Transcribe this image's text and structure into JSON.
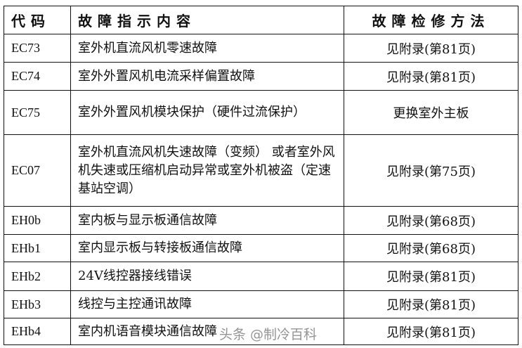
{
  "table": {
    "headers": [
      "代码",
      "故障指示内容",
      "故障检修方法"
    ],
    "rows": [
      {
        "code": "EC73",
        "desc": "室外机直流风机零速故障",
        "method": "见附录(第81页)"
      },
      {
        "code": "EC74",
        "desc": "室外外置风机电流采样偏置故障",
        "method": "见附录(第81页)"
      },
      {
        "code": "EC75",
        "desc": "室外外置风机模块保护（硬件过流保护）",
        "method": "更换室外主板"
      },
      {
        "code": "EC07",
        "desc": "室外机直流风机失速故障（变频） 或者室外风机失速或压缩机启动异常或室外机被盗（定速基站空调）",
        "method": "见附录(第75页)"
      },
      {
        "code": "EH0b",
        "desc": "室内板与显示板通信故障",
        "method": "见附录(第68页)"
      },
      {
        "code": "EHb1",
        "desc": "室内显示板与转接板通信故障",
        "method": "见附录(第68页)"
      },
      {
        "code": "EHb2",
        "desc": "24V线控器接线错误",
        "method": "见附录(第81页)"
      },
      {
        "code": "EHb3",
        "desc": "线控与主控通讯故障",
        "method": "见附录(第81页)"
      },
      {
        "code": "EHb4",
        "desc": "室内机语音模块通信故障",
        "method": "见附录(第81页)"
      }
    ]
  },
  "watermark": "头条 @制冷百科"
}
